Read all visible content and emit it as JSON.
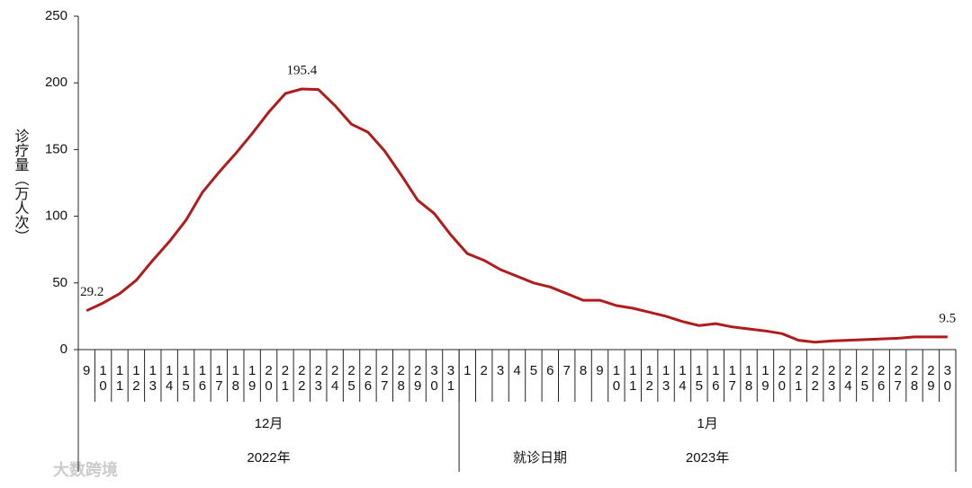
{
  "chart_data": {
    "type": "line",
    "y_label": "诊疗量（万人次）",
    "x_label": "就诊日期",
    "categories": [
      "9",
      "10",
      "11",
      "12",
      "13",
      "14",
      "15",
      "16",
      "17",
      "18",
      "19",
      "20",
      "21",
      "22",
      "23",
      "24",
      "25",
      "26",
      "27",
      "28",
      "29",
      "30",
      "31",
      "1",
      "2",
      "3",
      "4",
      "5",
      "6",
      "7",
      "8",
      "9",
      "10",
      "11",
      "12",
      "13",
      "14",
      "15",
      "16",
      "17",
      "18",
      "19",
      "20",
      "21",
      "22",
      "23",
      "24",
      "25",
      "26",
      "27",
      "28",
      "29",
      "30"
    ],
    "groups": [
      {
        "month": "12月",
        "year": "2022年",
        "count": 23
      },
      {
        "month": "1月",
        "year": "2023年",
        "count": 30
      }
    ],
    "series": [
      {
        "name": "诊疗量",
        "color": "#b01c1c",
        "values": [
          29.2,
          35,
          42,
          52,
          67,
          81,
          97,
          118,
          133,
          147,
          162,
          178,
          192,
          195.4,
          195,
          183,
          169,
          163,
          149,
          131,
          112,
          102,
          86,
          72,
          67,
          60,
          55,
          50,
          47,
          42,
          37,
          37,
          33,
          31,
          28,
          25,
          21,
          18,
          19.5,
          17,
          15.5,
          14,
          12,
          7,
          5.5,
          6.5,
          7,
          7.5,
          8,
          8.5,
          9.5,
          9.5,
          9.5
        ],
        "value_labels": [
          "29.2",
          null,
          null,
          null,
          null,
          null,
          null,
          null,
          null,
          null,
          null,
          null,
          null,
          "195.4",
          null,
          null,
          null,
          null,
          null,
          null,
          null,
          null,
          null,
          null,
          null,
          null,
          null,
          null,
          null,
          null,
          null,
          null,
          null,
          null,
          null,
          null,
          null,
          null,
          null,
          null,
          null,
          null,
          null,
          null,
          null,
          null,
          null,
          null,
          null,
          null,
          null,
          null,
          "9.5"
        ]
      }
    ],
    "ylim": [
      0,
      250
    ],
    "yticks": [
      0,
      50,
      100,
      150,
      200,
      250
    ],
    "watermark": "大数跨境"
  }
}
